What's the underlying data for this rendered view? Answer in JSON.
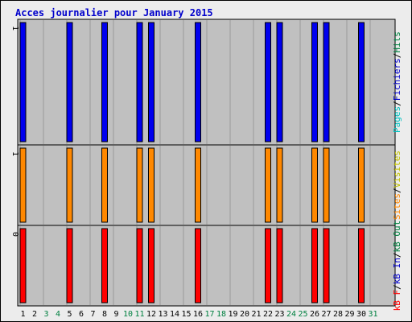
{
  "title": "Acces journalier pour January 2015",
  "colors": {
    "background": "#ececec",
    "panel": "#c0c0c0",
    "title": "#0000cc",
    "hits_bar": "#0000ee",
    "hits_top": "#6666ff",
    "fichiers_bar": "#00a0a0",
    "pages_bar": "#00c0c0",
    "sites_bar": "#ff8800",
    "visites_bar": "#ffff00",
    "kbf_bar": "#ff0000",
    "weekend_label": "#008040",
    "weekday_label": "#000000",
    "legend_kbf": "#ff0000",
    "legend_kbin": "#0000cc",
    "legend_kbout": "#008040",
    "legend_sites": "#ff8800",
    "legend_visites": "#c0c000",
    "legend_pages": "#00c0c0",
    "legend_fichiers": "#0000cc",
    "legend_hits": "#008040"
  },
  "right_legend": {
    "top": [
      {
        "text": "Pages",
        "color_key": "legend_pages"
      },
      {
        "text": "/",
        "color_key": "weekday_label"
      },
      {
        "text": "Fichiers",
        "color_key": "legend_fichiers"
      },
      {
        "text": "/",
        "color_key": "weekday_label"
      },
      {
        "text": "Hits",
        "color_key": "legend_hits"
      }
    ],
    "middle": [
      {
        "text": "Sites",
        "color_key": "legend_sites"
      },
      {
        "text": "/",
        "color_key": "weekday_label"
      },
      {
        "text": "Visites",
        "color_key": "legend_visites"
      }
    ],
    "bottom": [
      {
        "text": "kB F",
        "color_key": "legend_kbf"
      },
      {
        "text": "/",
        "color_key": "weekday_label"
      },
      {
        "text": "kB In",
        "color_key": "legend_kbin"
      },
      {
        "text": "/",
        "color_key": "weekday_label"
      },
      {
        "text": "kB Out",
        "color_key": "legend_kbout"
      }
    ]
  },
  "chart_data": {
    "type": "bar",
    "title": "Acces journalier pour January 2015",
    "categories": [
      "1",
      "2",
      "3",
      "4",
      "5",
      "6",
      "7",
      "8",
      "9",
      "10",
      "11",
      "12",
      "13",
      "14",
      "15",
      "16",
      "17",
      "18",
      "19",
      "20",
      "21",
      "22",
      "23",
      "24",
      "25",
      "26",
      "27",
      "28",
      "29",
      "30",
      "31"
    ],
    "weekend_days": [
      "3",
      "4",
      "10",
      "11",
      "17",
      "18",
      "24",
      "25",
      "31"
    ],
    "panels": [
      {
        "name": "Pages / Fichiers / Hits",
        "y_max_label": "1",
        "ylim": [
          0,
          1
        ],
        "series": [
          {
            "name": "Hits",
            "values": [
              1,
              0,
              0,
              0,
              1,
              0,
              0,
              1,
              0,
              0,
              1,
              1,
              0,
              0,
              0,
              1,
              0,
              0,
              0,
              0,
              0,
              1,
              1,
              0,
              0,
              1,
              1,
              0,
              0,
              1,
              0
            ]
          },
          {
            "name": "Fichiers",
            "values": [
              0,
              0,
              0,
              0,
              0,
              0,
              0,
              0,
              0,
              0,
              0,
              0,
              0,
              0,
              0,
              0,
              0,
              0,
              0,
              0,
              0,
              0,
              0,
              0,
              0,
              0,
              0,
              0,
              0,
              0,
              0
            ]
          },
          {
            "name": "Pages",
            "values": [
              0,
              0,
              0,
              0,
              0,
              0,
              0,
              0,
              0,
              0,
              0,
              0,
              0,
              0,
              0,
              0,
              0,
              0,
              0,
              0,
              0,
              0,
              0,
              0,
              0,
              0,
              0,
              0,
              0,
              0,
              0
            ]
          }
        ]
      },
      {
        "name": "Sites / Visites",
        "y_max_label": "1",
        "ylim": [
          0,
          1
        ],
        "series": [
          {
            "name": "Sites",
            "values": [
              1,
              0,
              0,
              0,
              1,
              0,
              0,
              1,
              0,
              0,
              1,
              1,
              0,
              0,
              0,
              1,
              0,
              0,
              0,
              0,
              0,
              1,
              1,
              0,
              0,
              1,
              1,
              0,
              0,
              1,
              0
            ]
          },
          {
            "name": "Visites",
            "values": [
              0,
              0,
              0,
              0,
              0,
              0,
              0,
              0,
              0,
              0,
              0,
              0,
              0,
              0,
              0,
              0,
              0,
              0,
              0,
              0,
              0,
              0,
              0,
              0,
              0,
              0,
              0,
              0,
              0,
              0,
              0
            ]
          }
        ]
      },
      {
        "name": "kB F / kB In / kB Out",
        "y_max_label": "0",
        "ylim": [
          0,
          1
        ],
        "series": [
          {
            "name": "kB F",
            "values": [
              1,
              0,
              0,
              0,
              1,
              0,
              0,
              1,
              0,
              0,
              1,
              1,
              0,
              0,
              0,
              1,
              0,
              0,
              0,
              0,
              0,
              1,
              1,
              0,
              0,
              1,
              1,
              0,
              0,
              1,
              0
            ]
          },
          {
            "name": "kB In",
            "values": [
              0,
              0,
              0,
              0,
              0,
              0,
              0,
              0,
              0,
              0,
              0,
              0,
              0,
              0,
              0,
              0,
              0,
              0,
              0,
              0,
              0,
              0,
              0,
              0,
              0,
              0,
              0,
              0,
              0,
              0,
              0
            ]
          },
          {
            "name": "kB Out",
            "values": [
              0,
              0,
              0,
              0,
              0,
              0,
              0,
              0,
              0,
              0,
              0,
              0,
              0,
              0,
              0,
              0,
              0,
              0,
              0,
              0,
              0,
              0,
              0,
              0,
              0,
              0,
              0,
              0,
              0,
              0,
              0
            ]
          }
        ]
      }
    ]
  }
}
